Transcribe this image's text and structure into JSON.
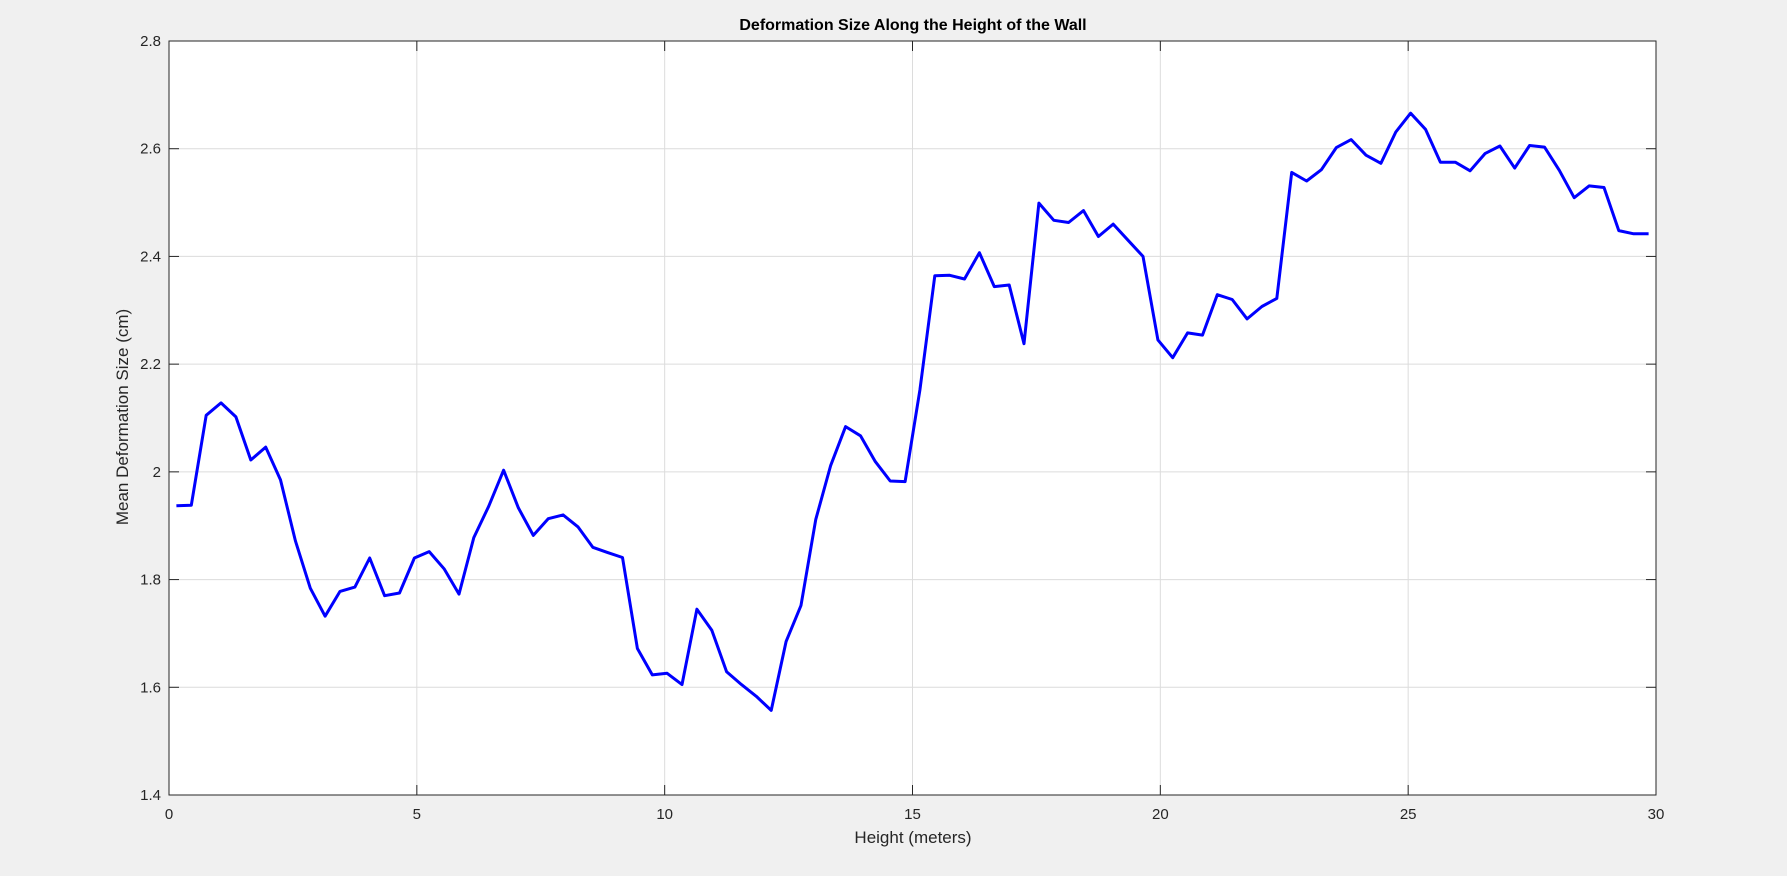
{
  "chart_data": {
    "type": "line",
    "title": "Deformation Size Along the Height of the Wall",
    "xlabel": "Height (meters)",
    "ylabel": "Mean Deformation Size (cm)",
    "xlim": [
      0,
      30
    ],
    "ylim": [
      1.4,
      2.8
    ],
    "xticks": [
      0,
      5,
      10,
      15,
      20,
      25,
      30
    ],
    "yticks": [
      1.4,
      1.6,
      1.8,
      2.0,
      2.2,
      2.4,
      2.6,
      2.8
    ],
    "xtick_labels": [
      "0",
      "5",
      "10",
      "15",
      "20",
      "25",
      "30"
    ],
    "ytick_labels": [
      "1.4",
      "1.6",
      "1.8",
      "2",
      "2.2",
      "2.4",
      "2.6",
      "2.8"
    ],
    "grid": true,
    "series": [
      {
        "color": "#0000ff",
        "x": [
          0.15,
          0.45,
          0.75,
          1.05,
          1.35,
          1.65,
          1.95,
          2.25,
          2.55,
          2.85,
          3.15,
          3.45,
          3.75,
          4.05,
          4.35,
          4.65,
          4.95,
          5.25,
          5.55,
          5.85,
          6.15,
          6.45,
          6.75,
          7.05,
          7.35,
          7.65,
          7.95,
          8.25,
          8.55,
          8.85,
          9.15,
          9.45,
          9.75,
          10.05,
          10.35,
          10.65,
          10.95,
          11.25,
          11.55,
          11.85,
          12.15,
          12.45,
          12.75,
          13.05,
          13.35,
          13.65,
          13.95,
          14.25,
          14.55,
          14.85,
          15.15,
          15.45,
          15.75,
          16.05,
          16.35,
          16.65,
          16.95,
          17.25,
          17.55,
          17.85,
          18.15,
          18.45,
          18.75,
          19.05,
          19.35,
          19.65,
          19.95,
          20.25,
          20.55,
          20.85,
          21.15,
          21.45,
          21.75,
          22.05,
          22.35,
          22.65,
          22.95,
          23.25,
          23.55,
          23.85,
          24.15,
          24.45,
          24.75,
          25.05,
          25.35,
          25.65,
          25.95,
          26.25,
          26.55,
          26.85,
          27.15,
          27.45,
          27.75,
          28.05,
          28.35,
          28.65,
          28.95,
          29.25,
          29.55,
          29.85
        ],
        "y": [
          1.937,
          1.938,
          2.105,
          2.128,
          2.102,
          2.022,
          2.046,
          1.985,
          1.872,
          1.784,
          1.732,
          1.778,
          1.786,
          1.84,
          1.77,
          1.775,
          1.84,
          1.852,
          1.82,
          1.773,
          1.878,
          1.936,
          2.003,
          1.933,
          1.882,
          1.913,
          1.92,
          1.898,
          1.86,
          1.85,
          1.841,
          1.672,
          1.623,
          1.626,
          1.605,
          1.745,
          1.706,
          1.629,
          1.605,
          1.583,
          1.557,
          1.685,
          1.752,
          1.912,
          2.012,
          2.084,
          2.067,
          2.019,
          1.983,
          1.982,
          2.152,
          2.364,
          2.365,
          2.358,
          2.407,
          2.344,
          2.347,
          2.238,
          2.499,
          2.467,
          2.463,
          2.485,
          2.437,
          2.46,
          2.43,
          2.4,
          2.245,
          2.212,
          2.258,
          2.254,
          2.329,
          2.32,
          2.284,
          2.307,
          2.322,
          2.556,
          2.54,
          2.561,
          2.602,
          2.617,
          2.588,
          2.573,
          2.631,
          2.666,
          2.636,
          2.575,
          2.575,
          2.559,
          2.591,
          2.605,
          2.564,
          2.606,
          2.603,
          2.56,
          2.509,
          2.531,
          2.528,
          2.448,
          2.442,
          2.442
        ]
      }
    ]
  }
}
